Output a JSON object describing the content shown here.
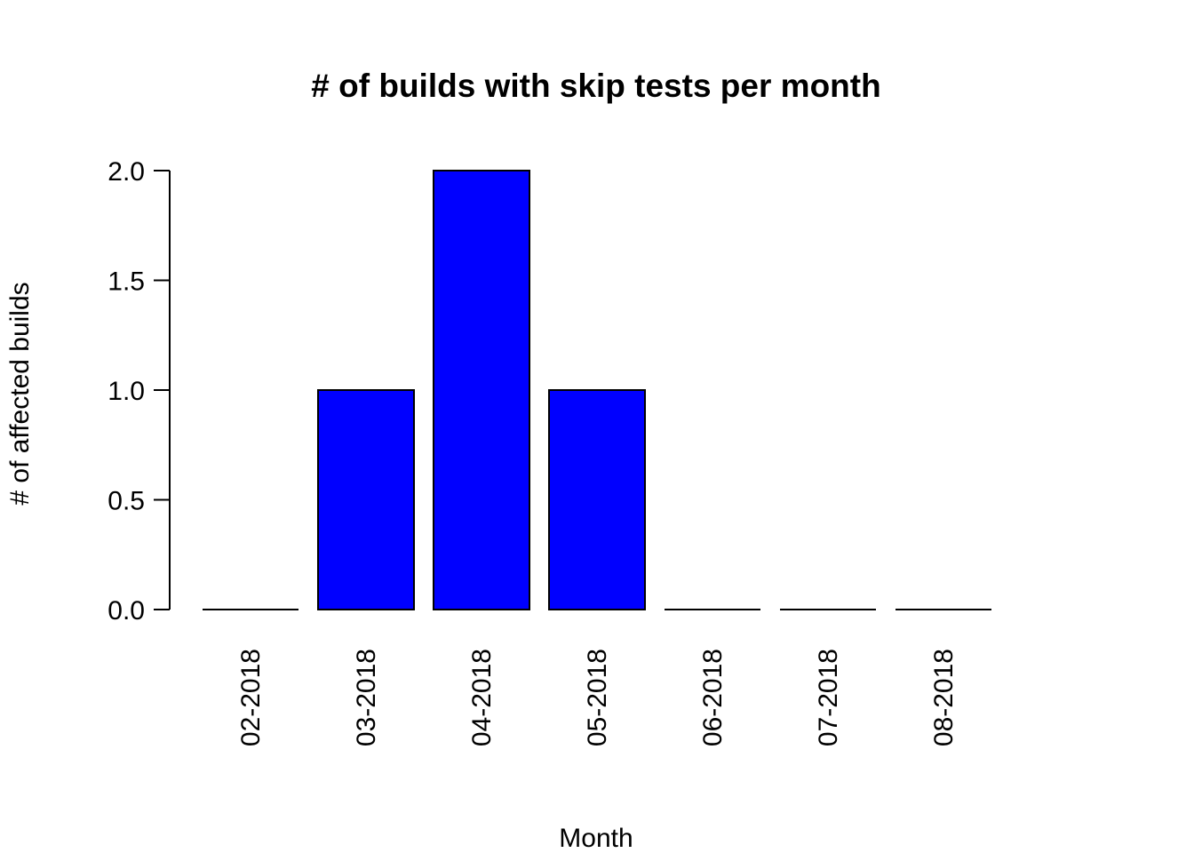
{
  "chart_data": {
    "type": "bar",
    "title": "# of builds with skip tests per month",
    "xlabel": "Month",
    "ylabel": "# of affected builds",
    "categories": [
      "02-2018",
      "03-2018",
      "04-2018",
      "05-2018",
      "06-2018",
      "07-2018",
      "08-2018"
    ],
    "values": [
      0,
      1,
      2,
      1,
      0,
      0,
      0
    ],
    "ylim": [
      0,
      2
    ],
    "yticks": [
      0.0,
      0.5,
      1.0,
      1.5,
      2.0
    ],
    "ytick_labels": [
      "0.0",
      "0.5",
      "1.0",
      "1.5",
      "2.0"
    ],
    "bar_color": "#0000ff",
    "bar_border_color": "#000000",
    "grid": false,
    "x_tick_label_orientation": "vertical"
  }
}
